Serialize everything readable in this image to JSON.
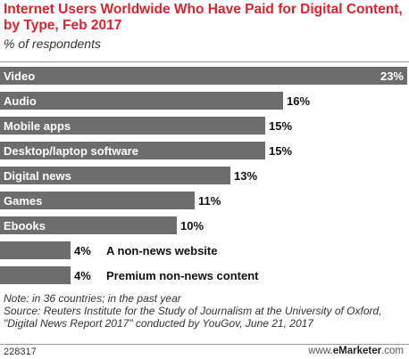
{
  "header": {
    "title": "Internet Users Worldwide Who Have Paid for Digital Content, by Type, Feb 2017",
    "subtitle": "% of respondents"
  },
  "chart_data": {
    "type": "bar",
    "orientation": "horizontal",
    "categories": [
      "Video",
      "Audio",
      "Mobile apps",
      "Desktop/laptop software",
      "Digital news",
      "Games",
      "Ebooks",
      "A non-news website",
      "Premium non-news content"
    ],
    "values": [
      23,
      16,
      15,
      15,
      13,
      11,
      10,
      4,
      4
    ],
    "value_labels": [
      "23%",
      "16%",
      "15%",
      "15%",
      "13%",
      "11%",
      "10%",
      "4%",
      "4%"
    ],
    "xlim": [
      0,
      23
    ],
    "grid": false,
    "legend": "none",
    "bar_color": "#6d6d6d"
  },
  "footer": {
    "note": "Note: in 36 countries; in the past year",
    "source": "Source: Reuters Institute for the Study of Journalism at the University of Oxford, \"Digital News Report 2017\" conducted by YouGov, June 21, 2017",
    "chart_id": "228317",
    "brand_prefix": "www.",
    "brand_name": "eMarketer",
    "brand_suffix": ".com"
  }
}
